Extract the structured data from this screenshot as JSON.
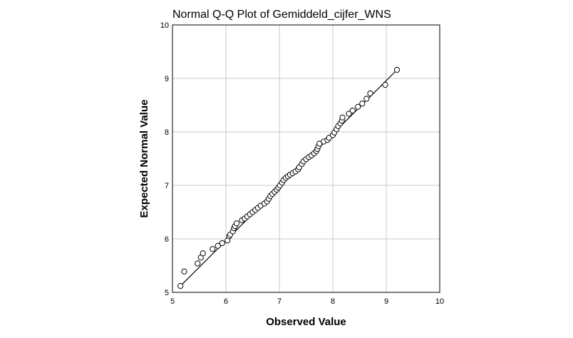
{
  "chart_data": {
    "type": "scatter",
    "title": "Normal Q-Q Plot of Gemiddeld_cijfer_WNS",
    "xlabel": "Observed Value",
    "ylabel": "Expected Normal Value",
    "xlim": [
      5,
      10
    ],
    "ylim": [
      5,
      10
    ],
    "xticks": [
      "5",
      "6",
      "7",
      "8",
      "9",
      "10"
    ],
    "yticks": [
      "5",
      "6",
      "7",
      "8",
      "9",
      "10"
    ],
    "grid": true,
    "reference_line": {
      "x": [
        5.12,
        9.2
      ],
      "y": [
        5.09,
        9.16
      ]
    },
    "points": [
      {
        "x": 5.15,
        "y": 5.12
      },
      {
        "x": 5.22,
        "y": 5.39
      },
      {
        "x": 5.47,
        "y": 5.54
      },
      {
        "x": 5.53,
        "y": 5.65
      },
      {
        "x": 5.57,
        "y": 5.73
      },
      {
        "x": 5.75,
        "y": 5.81
      },
      {
        "x": 5.85,
        "y": 5.87
      },
      {
        "x": 5.93,
        "y": 5.92
      },
      {
        "x": 6.03,
        "y": 5.97
      },
      {
        "x": 6.06,
        "y": 6.05
      },
      {
        "x": 6.08,
        "y": 6.08
      },
      {
        "x": 6.13,
        "y": 6.14
      },
      {
        "x": 6.15,
        "y": 6.2
      },
      {
        "x": 6.17,
        "y": 6.24
      },
      {
        "x": 6.2,
        "y": 6.29
      },
      {
        "x": 6.3,
        "y": 6.35
      },
      {
        "x": 6.35,
        "y": 6.38
      },
      {
        "x": 6.4,
        "y": 6.42
      },
      {
        "x": 6.45,
        "y": 6.46
      },
      {
        "x": 6.5,
        "y": 6.5
      },
      {
        "x": 6.55,
        "y": 6.54
      },
      {
        "x": 6.6,
        "y": 6.58
      },
      {
        "x": 6.65,
        "y": 6.62
      },
      {
        "x": 6.72,
        "y": 6.66
      },
      {
        "x": 6.77,
        "y": 6.7
      },
      {
        "x": 6.8,
        "y": 6.75
      },
      {
        "x": 6.83,
        "y": 6.8
      },
      {
        "x": 6.87,
        "y": 6.84
      },
      {
        "x": 6.91,
        "y": 6.88
      },
      {
        "x": 6.95,
        "y": 6.92
      },
      {
        "x": 6.98,
        "y": 6.96
      },
      {
        "x": 7.01,
        "y": 7.0
      },
      {
        "x": 7.05,
        "y": 7.05
      },
      {
        "x": 7.08,
        "y": 7.1
      },
      {
        "x": 7.12,
        "y": 7.14
      },
      {
        "x": 7.16,
        "y": 7.17
      },
      {
        "x": 7.2,
        "y": 7.2
      },
      {
        "x": 7.25,
        "y": 7.23
      },
      {
        "x": 7.3,
        "y": 7.26
      },
      {
        "x": 7.35,
        "y": 7.3
      },
      {
        "x": 7.37,
        "y": 7.34
      },
      {
        "x": 7.42,
        "y": 7.4
      },
      {
        "x": 7.45,
        "y": 7.45
      },
      {
        "x": 7.5,
        "y": 7.49
      },
      {
        "x": 7.55,
        "y": 7.53
      },
      {
        "x": 7.6,
        "y": 7.56
      },
      {
        "x": 7.65,
        "y": 7.6
      },
      {
        "x": 7.69,
        "y": 7.64
      },
      {
        "x": 7.71,
        "y": 7.68
      },
      {
        "x": 7.73,
        "y": 7.73
      },
      {
        "x": 7.75,
        "y": 7.78
      },
      {
        "x": 7.83,
        "y": 7.82
      },
      {
        "x": 7.9,
        "y": 7.85
      },
      {
        "x": 7.93,
        "y": 7.89
      },
      {
        "x": 8.0,
        "y": 7.94
      },
      {
        "x": 8.03,
        "y": 7.99
      },
      {
        "x": 8.07,
        "y": 8.05
      },
      {
        "x": 8.1,
        "y": 8.11
      },
      {
        "x": 8.14,
        "y": 8.16
      },
      {
        "x": 8.17,
        "y": 8.21
      },
      {
        "x": 8.18,
        "y": 8.27
      },
      {
        "x": 8.3,
        "y": 8.34
      },
      {
        "x": 8.37,
        "y": 8.4
      },
      {
        "x": 8.47,
        "y": 8.47
      },
      {
        "x": 8.55,
        "y": 8.53
      },
      {
        "x": 8.63,
        "y": 8.62
      },
      {
        "x": 8.7,
        "y": 8.72
      },
      {
        "x": 8.98,
        "y": 8.88
      },
      {
        "x": 9.2,
        "y": 9.16
      }
    ]
  }
}
